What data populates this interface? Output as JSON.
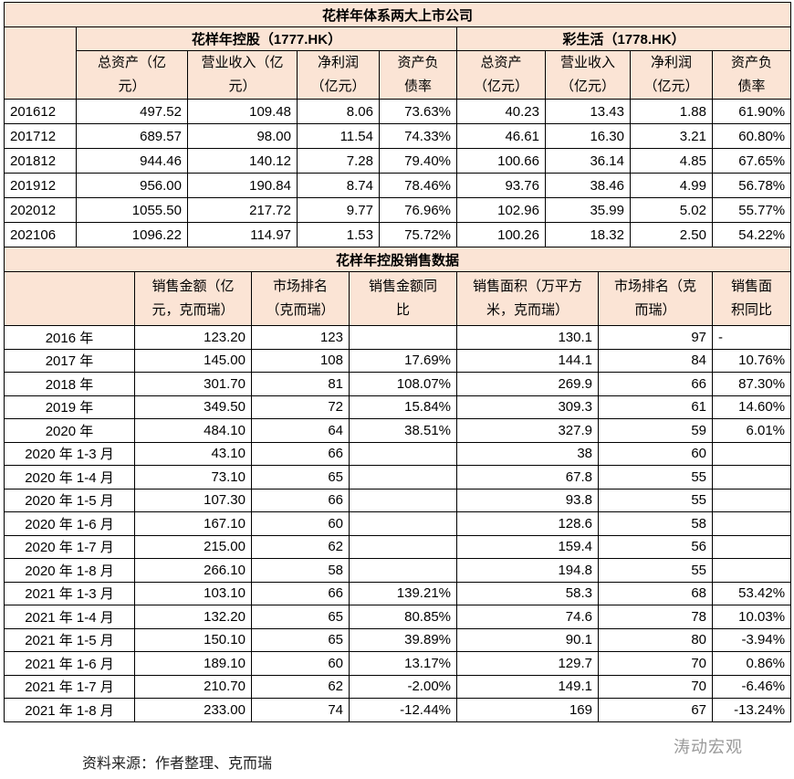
{
  "table1": {
    "title": "花样年体系两大上市公司",
    "groups": [
      "花样年控股（1777.HK）",
      "彩生活（1778.HK）"
    ],
    "columns": [
      "总资产（亿元）",
      "营业收入（亿元）",
      "净利润（亿元）",
      "资产负债率",
      "总资产（亿元）",
      "营业收入（亿元）",
      "净利润（亿元）",
      "资产负债率"
    ],
    "rows": [
      [
        "201612",
        "497.52",
        "109.48",
        "8.06",
        "73.63%",
        "40.23",
        "13.43",
        "1.88",
        "61.90%"
      ],
      [
        "201712",
        "689.57",
        "98.00",
        "11.54",
        "74.33%",
        "46.61",
        "16.30",
        "3.21",
        "60.80%"
      ],
      [
        "201812",
        "944.46",
        "140.12",
        "7.28",
        "79.40%",
        "100.66",
        "36.14",
        "4.85",
        "67.65%"
      ],
      [
        "201912",
        "956.00",
        "190.84",
        "8.74",
        "78.46%",
        "93.76",
        "38.46",
        "4.99",
        "56.78%"
      ],
      [
        "202012",
        "1055.50",
        "217.72",
        "9.77",
        "76.96%",
        "102.96",
        "35.99",
        "5.02",
        "55.77%"
      ],
      [
        "202106",
        "1096.22",
        "114.97",
        "1.53",
        "75.72%",
        "100.26",
        "18.32",
        "2.50",
        "54.22%"
      ]
    ]
  },
  "table2": {
    "title": "花样年控股销售数据",
    "columns": [
      "销售金额（亿元，克而瑞）",
      "市场排名（克而瑞）",
      "销售金额同比",
      "销售面积（万平方米，克而瑞）",
      "市场排名（克而瑞）",
      "销售面积同比"
    ],
    "rows": [
      [
        "2016 年",
        "123.20",
        "123",
        null,
        "130.1",
        "97",
        "-"
      ],
      [
        "2017 年",
        "145.00",
        "108",
        "17.69%",
        "144.1",
        "84",
        "10.76%"
      ],
      [
        "2018 年",
        "301.70",
        "81",
        "108.07%",
        "269.9",
        "66",
        "87.30%"
      ],
      [
        "2019 年",
        "349.50",
        "72",
        "15.84%",
        "309.3",
        "61",
        "14.60%"
      ],
      [
        "2020 年",
        "484.10",
        "64",
        "38.51%",
        "327.9",
        "59",
        "6.01%"
      ],
      [
        "2020 年 1-3 月",
        "43.10",
        "66",
        null,
        "38",
        "60",
        null
      ],
      [
        "2020 年 1-4 月",
        "73.10",
        "65",
        null,
        "67.8",
        "55",
        null
      ],
      [
        "2020 年 1-5 月",
        "107.30",
        "66",
        null,
        "93.8",
        "55",
        null
      ],
      [
        "2020 年 1-6 月",
        "167.10",
        "60",
        null,
        "128.6",
        "58",
        null
      ],
      [
        "2020 年 1-7 月",
        "215.00",
        "62",
        null,
        "159.4",
        "56",
        null
      ],
      [
        "2020 年 1-8 月",
        "266.10",
        "58",
        null,
        "194.8",
        "55",
        null
      ],
      [
        "2021 年 1-3 月",
        "103.10",
        "66",
        "139.21%",
        "58.3",
        "68",
        "53.42%"
      ],
      [
        "2021 年 1-4 月",
        "132.20",
        "65",
        "80.85%",
        "74.6",
        "78",
        "10.03%"
      ],
      [
        "2021 年 1-5 月",
        "150.10",
        "65",
        "39.89%",
        "90.1",
        "80",
        "-3.94%"
      ],
      [
        "2021 年 1-6 月",
        "189.10",
        "60",
        "13.17%",
        "129.7",
        "70",
        "0.86%"
      ],
      [
        "2021 年 1-7 月",
        "210.70",
        "62",
        "-2.00%",
        "149.1",
        "70",
        "-6.46%"
      ],
      [
        "2021 年 1-8 月",
        "233.00",
        "74",
        "-12.44%",
        "169",
        "67",
        "-13.24%"
      ]
    ]
  },
  "source": "资料来源：作者整理、克而瑞",
  "watermark": "涛动宏观"
}
